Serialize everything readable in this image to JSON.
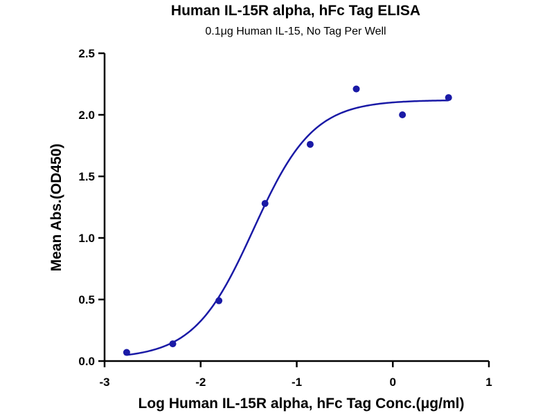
{
  "chart_data": {
    "type": "scatter",
    "title": "Human IL-15R alpha, hFc Tag ELISA",
    "subtitle": "0.1μg Human IL-15, No Tag Per Well",
    "xlabel": "Log Human IL-15R alpha, hFc Tag Conc.(μg/ml)",
    "ylabel": "Mean Abs.(OD450)",
    "xlim": [
      -3,
      1
    ],
    "ylim": [
      0,
      2.5
    ],
    "x_ticks": [
      "-3",
      "-2",
      "-1",
      "0",
      "1"
    ],
    "y_ticks": [
      "0.0",
      "0.5",
      "1.0",
      "1.5",
      "2.0",
      "2.5"
    ],
    "grid": false,
    "color": "#1a1aa6",
    "points": [
      {
        "x": -2.77,
        "y": 0.07
      },
      {
        "x": -2.29,
        "y": 0.14
      },
      {
        "x": -1.81,
        "y": 0.49
      },
      {
        "x": -1.33,
        "y": 1.28
      },
      {
        "x": -0.86,
        "y": 1.76
      },
      {
        "x": -0.38,
        "y": 2.21
      },
      {
        "x": 0.1,
        "y": 2.0
      },
      {
        "x": 0.58,
        "y": 2.14
      }
    ],
    "fit": {
      "type": "4PL",
      "bottom": 0.02,
      "top": 2.12,
      "log_ec50": -1.45,
      "hill_slope": 1.4,
      "x_range": [
        -2.77,
        0.58
      ]
    }
  }
}
